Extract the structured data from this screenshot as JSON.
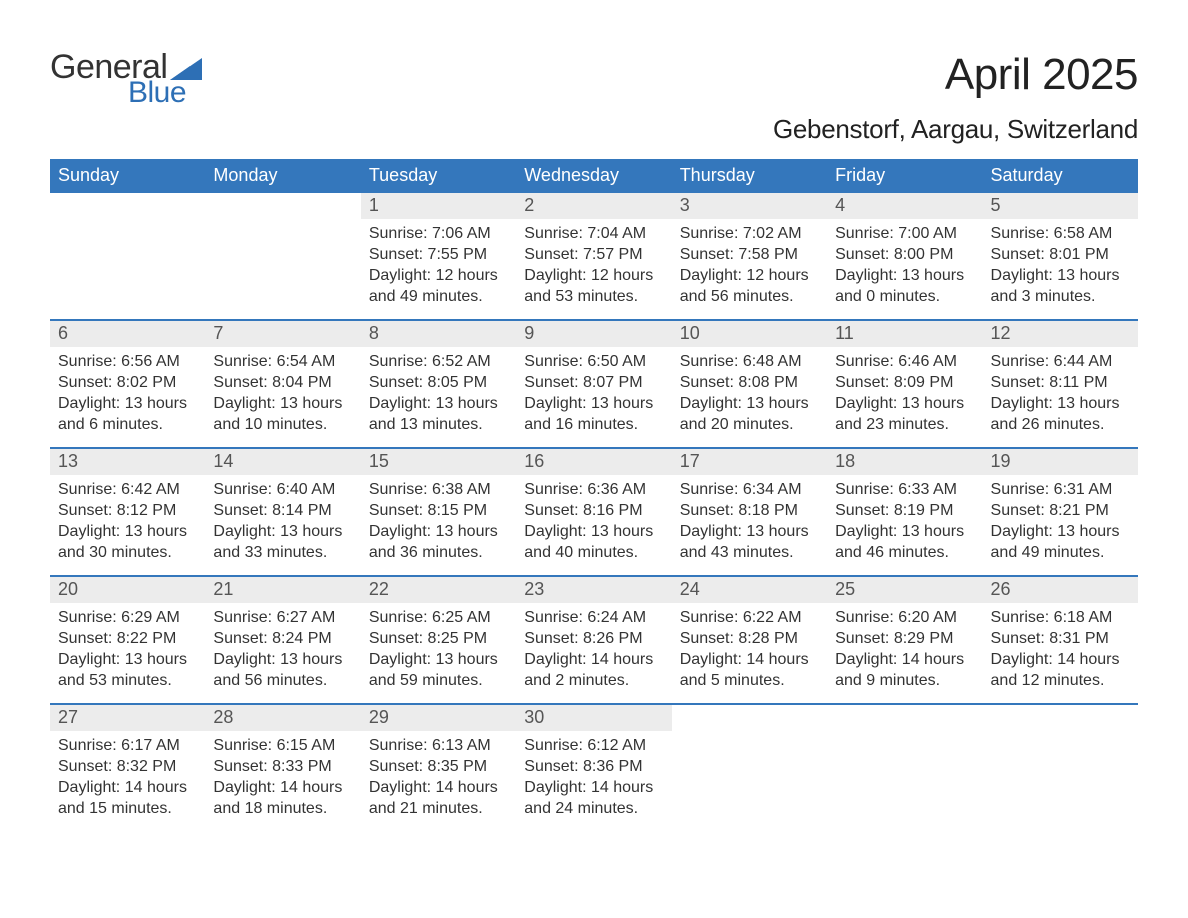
{
  "logo": {
    "text1": "General",
    "text2": "Blue",
    "shape_color": "#2d6fb5"
  },
  "title": "April 2025",
  "location": "Gebenstorf, Aargau, Switzerland",
  "colors": {
    "header_bg": "#3477bc",
    "header_text": "#ffffff",
    "daynum_bg": "#ececec",
    "text": "#333333",
    "week_border": "#3477bc"
  },
  "day_names": [
    "Sunday",
    "Monday",
    "Tuesday",
    "Wednesday",
    "Thursday",
    "Friday",
    "Saturday"
  ],
  "weeks": [
    [
      {
        "day": "",
        "sunrise": "",
        "sunset": "",
        "daylight": ""
      },
      {
        "day": "",
        "sunrise": "",
        "sunset": "",
        "daylight": ""
      },
      {
        "day": "1",
        "sunrise": "Sunrise: 7:06 AM",
        "sunset": "Sunset: 7:55 PM",
        "daylight": "Daylight: 12 hours and 49 minutes."
      },
      {
        "day": "2",
        "sunrise": "Sunrise: 7:04 AM",
        "sunset": "Sunset: 7:57 PM",
        "daylight": "Daylight: 12 hours and 53 minutes."
      },
      {
        "day": "3",
        "sunrise": "Sunrise: 7:02 AM",
        "sunset": "Sunset: 7:58 PM",
        "daylight": "Daylight: 12 hours and 56 minutes."
      },
      {
        "day": "4",
        "sunrise": "Sunrise: 7:00 AM",
        "sunset": "Sunset: 8:00 PM",
        "daylight": "Daylight: 13 hours and 0 minutes."
      },
      {
        "day": "5",
        "sunrise": "Sunrise: 6:58 AM",
        "sunset": "Sunset: 8:01 PM",
        "daylight": "Daylight: 13 hours and 3 minutes."
      }
    ],
    [
      {
        "day": "6",
        "sunrise": "Sunrise: 6:56 AM",
        "sunset": "Sunset: 8:02 PM",
        "daylight": "Daylight: 13 hours and 6 minutes."
      },
      {
        "day": "7",
        "sunrise": "Sunrise: 6:54 AM",
        "sunset": "Sunset: 8:04 PM",
        "daylight": "Daylight: 13 hours and 10 minutes."
      },
      {
        "day": "8",
        "sunrise": "Sunrise: 6:52 AM",
        "sunset": "Sunset: 8:05 PM",
        "daylight": "Daylight: 13 hours and 13 minutes."
      },
      {
        "day": "9",
        "sunrise": "Sunrise: 6:50 AM",
        "sunset": "Sunset: 8:07 PM",
        "daylight": "Daylight: 13 hours and 16 minutes."
      },
      {
        "day": "10",
        "sunrise": "Sunrise: 6:48 AM",
        "sunset": "Sunset: 8:08 PM",
        "daylight": "Daylight: 13 hours and 20 minutes."
      },
      {
        "day": "11",
        "sunrise": "Sunrise: 6:46 AM",
        "sunset": "Sunset: 8:09 PM",
        "daylight": "Daylight: 13 hours and 23 minutes."
      },
      {
        "day": "12",
        "sunrise": "Sunrise: 6:44 AM",
        "sunset": "Sunset: 8:11 PM",
        "daylight": "Daylight: 13 hours and 26 minutes."
      }
    ],
    [
      {
        "day": "13",
        "sunrise": "Sunrise: 6:42 AM",
        "sunset": "Sunset: 8:12 PM",
        "daylight": "Daylight: 13 hours and 30 minutes."
      },
      {
        "day": "14",
        "sunrise": "Sunrise: 6:40 AM",
        "sunset": "Sunset: 8:14 PM",
        "daylight": "Daylight: 13 hours and 33 minutes."
      },
      {
        "day": "15",
        "sunrise": "Sunrise: 6:38 AM",
        "sunset": "Sunset: 8:15 PM",
        "daylight": "Daylight: 13 hours and 36 minutes."
      },
      {
        "day": "16",
        "sunrise": "Sunrise: 6:36 AM",
        "sunset": "Sunset: 8:16 PM",
        "daylight": "Daylight: 13 hours and 40 minutes."
      },
      {
        "day": "17",
        "sunrise": "Sunrise: 6:34 AM",
        "sunset": "Sunset: 8:18 PM",
        "daylight": "Daylight: 13 hours and 43 minutes."
      },
      {
        "day": "18",
        "sunrise": "Sunrise: 6:33 AM",
        "sunset": "Sunset: 8:19 PM",
        "daylight": "Daylight: 13 hours and 46 minutes."
      },
      {
        "day": "19",
        "sunrise": "Sunrise: 6:31 AM",
        "sunset": "Sunset: 8:21 PM",
        "daylight": "Daylight: 13 hours and 49 minutes."
      }
    ],
    [
      {
        "day": "20",
        "sunrise": "Sunrise: 6:29 AM",
        "sunset": "Sunset: 8:22 PM",
        "daylight": "Daylight: 13 hours and 53 minutes."
      },
      {
        "day": "21",
        "sunrise": "Sunrise: 6:27 AM",
        "sunset": "Sunset: 8:24 PM",
        "daylight": "Daylight: 13 hours and 56 minutes."
      },
      {
        "day": "22",
        "sunrise": "Sunrise: 6:25 AM",
        "sunset": "Sunset: 8:25 PM",
        "daylight": "Daylight: 13 hours and 59 minutes."
      },
      {
        "day": "23",
        "sunrise": "Sunrise: 6:24 AM",
        "sunset": "Sunset: 8:26 PM",
        "daylight": "Daylight: 14 hours and 2 minutes."
      },
      {
        "day": "24",
        "sunrise": "Sunrise: 6:22 AM",
        "sunset": "Sunset: 8:28 PM",
        "daylight": "Daylight: 14 hours and 5 minutes."
      },
      {
        "day": "25",
        "sunrise": "Sunrise: 6:20 AM",
        "sunset": "Sunset: 8:29 PM",
        "daylight": "Daylight: 14 hours and 9 minutes."
      },
      {
        "day": "26",
        "sunrise": "Sunrise: 6:18 AM",
        "sunset": "Sunset: 8:31 PM",
        "daylight": "Daylight: 14 hours and 12 minutes."
      }
    ],
    [
      {
        "day": "27",
        "sunrise": "Sunrise: 6:17 AM",
        "sunset": "Sunset: 8:32 PM",
        "daylight": "Daylight: 14 hours and 15 minutes."
      },
      {
        "day": "28",
        "sunrise": "Sunrise: 6:15 AM",
        "sunset": "Sunset: 8:33 PM",
        "daylight": "Daylight: 14 hours and 18 minutes."
      },
      {
        "day": "29",
        "sunrise": "Sunrise: 6:13 AM",
        "sunset": "Sunset: 8:35 PM",
        "daylight": "Daylight: 14 hours and 21 minutes."
      },
      {
        "day": "30",
        "sunrise": "Sunrise: 6:12 AM",
        "sunset": "Sunset: 8:36 PM",
        "daylight": "Daylight: 14 hours and 24 minutes."
      },
      {
        "day": "",
        "sunrise": "",
        "sunset": "",
        "daylight": ""
      },
      {
        "day": "",
        "sunrise": "",
        "sunset": "",
        "daylight": ""
      },
      {
        "day": "",
        "sunrise": "",
        "sunset": "",
        "daylight": ""
      }
    ]
  ]
}
